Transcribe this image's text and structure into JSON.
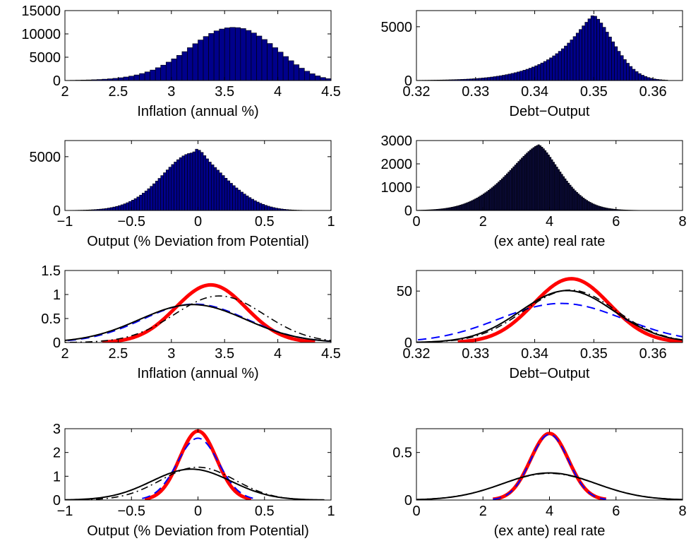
{
  "chart_data": [
    {
      "type": "bar",
      "panel": "hist-inflation",
      "xlabel": "Inflation (annual %)",
      "xlim": [
        2,
        4.5
      ],
      "ylim": [
        0,
        15000
      ],
      "xticks": [
        "2",
        "2.5",
        "3",
        "3.5",
        "4",
        "4.5"
      ],
      "yticks": [
        "0",
        "5000",
        "10000",
        "15000"
      ],
      "bar_color": "#00008b",
      "bins": {
        "start": 2.0,
        "width": 0.05
      },
      "values": [
        40,
        55,
        75,
        100,
        130,
        170,
        220,
        290,
        370,
        470,
        600,
        760,
        950,
        1200,
        1500,
        1850,
        2250,
        2750,
        3300,
        3950,
        4650,
        5400,
        6200,
        7050,
        7900,
        8700,
        9450,
        10100,
        10650,
        11050,
        11300,
        11400,
        11350,
        11150,
        10750,
        10200,
        9550,
        8800,
        7950,
        7050,
        6100,
        5150,
        4250,
        3400,
        2650,
        2000,
        1450,
        1000,
        650,
        400
      ]
    },
    {
      "type": "bar",
      "panel": "hist-debt",
      "xlabel": "Debt−Output",
      "xlim": [
        0.32,
        0.365
      ],
      "ylim": [
        0,
        6500
      ],
      "xticks": [
        "0.32",
        "0.33",
        "0.34",
        "0.35",
        "0.36"
      ],
      "yticks": [
        "0",
        "5000"
      ],
      "bar_color": "#00008b",
      "bins": {
        "start": 0.32,
        "width": 0.0005
      },
      "values": [
        20,
        22,
        25,
        28,
        32,
        36,
        40,
        45,
        50,
        56,
        62,
        70,
        78,
        87,
        97,
        108,
        120,
        134,
        150,
        168,
        188,
        210,
        235,
        262,
        292,
        325,
        362,
        402,
        446,
        494,
        546,
        602,
        663,
        729,
        800,
        877,
        960,
        1050,
        1148,
        1255,
        1370,
        1495,
        1630,
        1776,
        1935,
        2108,
        2295,
        2498,
        2718,
        2955,
        3210,
        3484,
        3777,
        4088,
        4413,
        4747,
        5085,
        5418,
        5735,
        6020,
        5980,
        5700,
        5350,
        4950,
        4500,
        4050,
        3600,
        3150,
        2720,
        2320,
        1950,
        1610,
        1310,
        1050,
        830,
        645,
        495,
        375,
        280,
        205,
        150,
        108,
        78,
        55,
        38
      ]
    },
    {
      "type": "bar",
      "panel": "hist-output",
      "xlabel": "Output (% Deviation from Potential)",
      "xlim": [
        -1,
        1
      ],
      "ylim": [
        0,
        6500
      ],
      "xticks": [
        "−1",
        "−0.5",
        "0",
        "0.5",
        "1"
      ],
      "yticks": [
        "0",
        "5000"
      ],
      "bar_color": "#00008b",
      "bins": {
        "start": -1.0,
        "width": 0.02
      },
      "values": [
        8,
        10,
        12,
        15,
        19,
        24,
        30,
        37,
        46,
        57,
        70,
        86,
        105,
        128,
        155,
        187,
        225,
        270,
        322,
        382,
        451,
        530,
        620,
        722,
        836,
        963,
        1104,
        1259,
        1429,
        1613,
        1811,
        2023,
        2248,
        2484,
        2731,
        2986,
        3246,
        3509,
        3771,
        4028,
        4275,
        4508,
        4722,
        4912,
        5073,
        5201,
        5293,
        5347,
        5450,
        5700,
        5600,
        5400,
        5100,
        4800,
        4500,
        4250,
        4000,
        3750,
        3500,
        3250,
        3000,
        2760,
        2530,
        2310,
        2100,
        1900,
        1710,
        1530,
        1360,
        1200,
        1050,
        910,
        785,
        670,
        570,
        480,
        400,
        330,
        270,
        218,
        175,
        139,
        109,
        85,
        65,
        50,
        38,
        28,
        21,
        15,
        11,
        8,
        6,
        4,
        3,
        2,
        2,
        1,
        1,
        1
      ]
    },
    {
      "type": "bar",
      "panel": "hist-realrate",
      "xlabel": "(ex ante) real rate",
      "xlim": [
        0,
        8
      ],
      "ylim": [
        0,
        3000
      ],
      "xticks": [
        "0",
        "2",
        "4",
        "6",
        "8"
      ],
      "yticks": [
        "0",
        "1000",
        "2000",
        "3000"
      ],
      "bar_color": "#0b0b3b",
      "bins": {
        "start": 0.0,
        "width": 0.05
      },
      "values": [
        10,
        12,
        14,
        16,
        18,
        21,
        24,
        27,
        31,
        35,
        40,
        45,
        51,
        58,
        65,
        73,
        82,
        92,
        103,
        115,
        128,
        142,
        157,
        174,
        192,
        211,
        232,
        255,
        279,
        305,
        333,
        362,
        393,
        426,
        461,
        498,
        537,
        578,
        621,
        666,
        713,
        762,
        813,
        866,
        921,
        978,
        1037,
        1098,
        1161,
        1226,
        1293,
        1361,
        1431,
        1502,
        1575,
        1649,
        1724,
        1800,
        1876,
        1953,
        2029,
        2105,
        2180,
        2254,
        2326,
        2396,
        2464,
        2529,
        2590,
        2648,
        2700,
        2747,
        2787,
        2820,
        2780,
        2720,
        2650,
        2570,
        2480,
        2385,
        2285,
        2180,
        2075,
        1970,
        1865,
        1760,
        1655,
        1555,
        1455,
        1360,
        1265,
        1175,
        1090,
        1005,
        925,
        850,
        780,
        712,
        650,
        590,
        535,
        483,
        435,
        391,
        350,
        313,
        279,
        248,
        220,
        195,
        172,
        152,
        134,
        118,
        103,
        90,
        79,
        69,
        60,
        52,
        45,
        39,
        34,
        29,
        25,
        22,
        19,
        16,
        14,
        12,
        10,
        9,
        8,
        7,
        6,
        5,
        4,
        4,
        3,
        3,
        2,
        2,
        2,
        1,
        1,
        1,
        1,
        1,
        1,
        1
      ]
    },
    {
      "type": "line",
      "panel": "dens-inflation",
      "xlabel": "Inflation (annual %)",
      "xlim": [
        2,
        4.5
      ],
      "ylim": [
        0,
        1.5
      ],
      "xticks": [
        "2",
        "2.5",
        "3",
        "3.5",
        "4",
        "4.5"
      ],
      "yticks": [
        "0",
        "0.5",
        "1",
        "1.5"
      ],
      "series": [
        {
          "style": "red-thick",
          "color": "#ff0000",
          "mu": 3.37,
          "sigma": 0.33,
          "peak": 1.2,
          "range": [
            2.35,
            4.35
          ]
        },
        {
          "style": "blue-dashed",
          "color": "#0000ff",
          "mu": 3.22,
          "sigma": 0.49,
          "peak": 0.8,
          "range": [
            1.9,
            4.5
          ]
        },
        {
          "style": "black-solid",
          "color": "#000000",
          "mu": 3.2,
          "sigma": 0.5,
          "peak": 0.79,
          "range": [
            1.9,
            4.5
          ]
        },
        {
          "style": "black-dashdot",
          "color": "#000000",
          "mu": 3.45,
          "sigma": 0.42,
          "peak": 0.97,
          "range": [
            1.9,
            4.5
          ]
        }
      ]
    },
    {
      "type": "line",
      "panel": "dens-debt",
      "xlabel": "Debt−Output",
      "xlim": [
        0.32,
        0.365
      ],
      "ylim": [
        0,
        70
      ],
      "xticks": [
        "0.32",
        "0.33",
        "0.34",
        "0.35",
        "0.36"
      ],
      "yticks": [
        "0",
        "50"
      ],
      "series": [
        {
          "style": "red-thick",
          "color": "#ff0000",
          "mu": 0.3462,
          "sigma": 0.0064,
          "peak": 62,
          "range": [
            0.327,
            0.365
          ]
        },
        {
          "style": "blue-dashed",
          "color": "#0000ff",
          "mu": 0.3445,
          "sigma": 0.0105,
          "peak": 38,
          "range": [
            0.318,
            0.366
          ]
        },
        {
          "style": "black-solid",
          "color": "#000000",
          "mu": 0.3455,
          "sigma": 0.0079,
          "peak": 50.5,
          "range": [
            0.318,
            0.366
          ]
        },
        {
          "style": "black-dashdot",
          "color": "#000000",
          "mu": 0.346,
          "sigma": 0.0078,
          "peak": 51,
          "range": [
            0.318,
            0.366
          ]
        }
      ]
    },
    {
      "type": "line",
      "panel": "dens-output",
      "xlabel": "Output (% Deviation from Potential)",
      "xlim": [
        -1,
        1
      ],
      "ylim": [
        0,
        3
      ],
      "xticks": [
        "−1",
        "−0.5",
        "0",
        "0.5",
        "1"
      ],
      "yticks": [
        "0",
        "1",
        "2",
        "3"
      ],
      "series": [
        {
          "style": "red-thick",
          "color": "#ff0000",
          "mu": 0.0,
          "sigma": 0.138,
          "peak": 2.9,
          "range": [
            -0.4,
            0.4
          ]
        },
        {
          "style": "blue-dashed",
          "color": "#0000ff",
          "mu": 0.0,
          "sigma": 0.155,
          "peak": 2.6,
          "range": [
            -0.42,
            0.44
          ]
        },
        {
          "style": "black-solid",
          "color": "#000000",
          "mu": -0.05,
          "sigma": 0.3,
          "peak": 1.3,
          "range": [
            -1,
            0.95
          ]
        },
        {
          "style": "black-dashdot",
          "color": "#000000",
          "mu": 0.0,
          "sigma": 0.28,
          "peak": 1.38,
          "range": [
            -1,
            0.95
          ]
        }
      ]
    },
    {
      "type": "line",
      "panel": "dens-realrate",
      "xlabel": "(ex ante) real rate",
      "xlim": [
        0,
        8
      ],
      "ylim": [
        0,
        0.75
      ],
      "xticks": [
        "0",
        "2",
        "4",
        "6",
        "8"
      ],
      "yticks": [
        "0",
        "0.5"
      ],
      "series": [
        {
          "style": "red-thick",
          "color": "#ff0000",
          "mu": 4.0,
          "sigma": 0.57,
          "peak": 0.7,
          "range": [
            2.3,
            5.7
          ]
        },
        {
          "style": "blue-dashed",
          "color": "#0000ff",
          "mu": 4.0,
          "sigma": 0.57,
          "peak": 0.69,
          "range": [
            2.3,
            5.7
          ]
        },
        {
          "style": "black-solid",
          "color": "#000000",
          "mu": 4.0,
          "sigma": 1.4,
          "peak": 0.285,
          "range": [
            0,
            8
          ]
        },
        {
          "style": "black-dashdot",
          "color": "#000000",
          "mu": 4.0,
          "sigma": 1.42,
          "peak": 0.28,
          "range": [
            0,
            8
          ]
        }
      ]
    }
  ]
}
